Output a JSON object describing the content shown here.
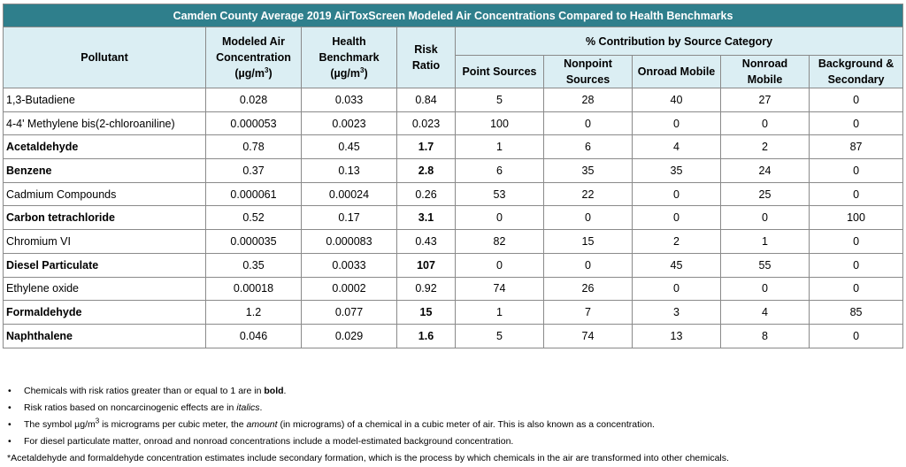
{
  "title": "Camden County Average 2019 AirToxScreen Modeled Air Concentrations Compared to Health Benchmarks",
  "headers": {
    "pollutant": "Pollutant",
    "modeled_line1": "Modeled Air",
    "modeled_line2": "Concentration",
    "modeled_unit": "(µg/m",
    "modeled_unit_sup": "3",
    "modeled_unit_end": ")",
    "bench_line1": "Health",
    "bench_line2": "Benchmark",
    "bench_unit": "(µg/m",
    "bench_unit_sup": "3",
    "bench_unit_end": ")",
    "risk_line1": "Risk",
    "risk_line2": "Ratio",
    "group": "% Contribution by Source Category",
    "point": "Point Sources",
    "nonpoint_line1": "Nonpoint",
    "nonpoint_line2": "Sources",
    "onroad": "Onroad Mobile",
    "nonroad_line1": "Nonroad",
    "nonroad_line2": "Mobile",
    "bg_line1": "Background &",
    "bg_line2": "Secondary"
  },
  "rows": [
    {
      "name": "1,3-Butadiene",
      "bold": false,
      "conc": "0.028",
      "bench": "0.033",
      "ratio": "0.84",
      "point": "5",
      "nonpoint": "28",
      "onroad": "40",
      "nonroad": "27",
      "bg": "0"
    },
    {
      "name": "4-4' Methylene bis(2-chloroaniline)",
      "bold": false,
      "conc": "0.000053",
      "bench": "0.0023",
      "ratio": "0.023",
      "point": "100",
      "nonpoint": "0",
      "onroad": "0",
      "nonroad": "0",
      "bg": "0"
    },
    {
      "name": "Acetaldehyde",
      "bold": true,
      "conc": "0.78",
      "bench": "0.45",
      "ratio": "1.7",
      "point": "1",
      "nonpoint": "6",
      "onroad": "4",
      "nonroad": "2",
      "bg": "87"
    },
    {
      "name": "Benzene",
      "bold": true,
      "conc": "0.37",
      "bench": "0.13",
      "ratio": "2.8",
      "point": "6",
      "nonpoint": "35",
      "onroad": "35",
      "nonroad": "24",
      "bg": "0"
    },
    {
      "name": "Cadmium Compounds",
      "bold": false,
      "conc": "0.000061",
      "bench": "0.00024",
      "ratio": "0.26",
      "point": "53",
      "nonpoint": "22",
      "onroad": "0",
      "nonroad": "25",
      "bg": "0"
    },
    {
      "name": "Carbon tetrachloride",
      "bold": true,
      "conc": "0.52",
      "bench": "0.17",
      "ratio": "3.1",
      "point": "0",
      "nonpoint": "0",
      "onroad": "0",
      "nonroad": "0",
      "bg": "100"
    },
    {
      "name": "Chromium VI",
      "bold": false,
      "conc": "0.000035",
      "bench": "0.000083",
      "ratio": "0.43",
      "point": "82",
      "nonpoint": "15",
      "onroad": "2",
      "nonroad": "1",
      "bg": "0"
    },
    {
      "name": "Diesel Particulate",
      "bold": true,
      "conc": "0.35",
      "bench": "0.0033",
      "ratio": "107",
      "point": "0",
      "nonpoint": "0",
      "onroad": "45",
      "nonroad": "55",
      "bg": "0"
    },
    {
      "name": "Ethylene oxide",
      "bold": false,
      "conc": "0.00018",
      "bench": "0.0002",
      "ratio": "0.92",
      "point": "74",
      "nonpoint": "26",
      "onroad": "0",
      "nonroad": "0",
      "bg": "0"
    },
    {
      "name": "Formaldehyde",
      "bold": true,
      "conc": "1.2",
      "bench": "0.077",
      "ratio": "15",
      "point": "1",
      "nonpoint": "7",
      "onroad": "3",
      "nonroad": "4",
      "bg": "85"
    },
    {
      "name": "Naphthalene",
      "bold": true,
      "conc": "0.046",
      "bench": "0.029",
      "ratio": "1.6",
      "point": "5",
      "nonpoint": "74",
      "onroad": "13",
      "nonroad": "8",
      "bg": "0"
    }
  ],
  "notes": {
    "n1_pre": "Chemicals with risk ratios greater than or equal to 1 are in ",
    "n1_em": "bold",
    "n1_post": ".",
    "n2_pre": "Risk ratios based on noncarcinogenic effects are in ",
    "n2_em": "italics",
    "n2_post": ".",
    "n3_pre": "The symbol µg/m",
    "n3_sup": "3",
    "n3_mid": " is micrograms per cubic meter, the ",
    "n3_em": "amount",
    "n3_post": " (in micrograms) of a chemical in a cubic meter of air. This is also known as a concentration.",
    "n4": "For diesel particulate matter, onroad and nonroad concentrations include a model-estimated background concentration.",
    "footnote": "*Acetaldehyde and formaldehyde concentration estimates include secondary formation, which is the process by which chemicals in the air are transformed into other chemicals."
  },
  "colors": {
    "title_bg": "#2f7f8c",
    "header_bg": "#dbeef3",
    "border": "#8a8a8a"
  },
  "icons": {
    "bullet": "•"
  }
}
